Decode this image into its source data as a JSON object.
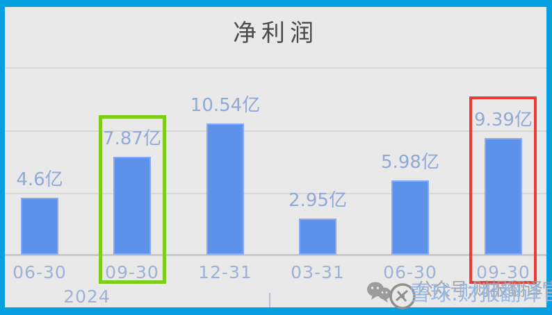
{
  "frame": {
    "border_color": "#069fe0",
    "background": "#e9e9e9"
  },
  "chart_data": {
    "type": "bar",
    "title": "净利润",
    "unit": "亿",
    "categories": [
      "06-30",
      "09-30",
      "12-31",
      "03-31",
      "06-30",
      "09-30"
    ],
    "values": [
      4.6,
      7.87,
      10.54,
      2.95,
      5.98,
      9.39
    ],
    "value_labels": [
      "4.6亿",
      "7.87亿",
      "10.54亿",
      "2.95亿",
      "5.98亿",
      "9.39亿"
    ],
    "year_label": "2024",
    "ylim": [
      0,
      15
    ],
    "gridline_values": [
      5,
      10,
      15
    ],
    "grid": true,
    "legend_position": "none",
    "bar_color": "#5c92ea",
    "bar_edge_color": "#86a9f0",
    "value_label_color": "#8fa9d9",
    "axis_label_color": "#9fb1d4",
    "title_color": "#4a4a4a",
    "gridline_color": "#d7d7d7",
    "baseline_color": "#c9c9c9",
    "highlights": [
      {
        "index": 1,
        "color": "#7ecd18",
        "thickness": 5
      },
      {
        "index": 5,
        "color": "#ec3b31",
        "thickness": 4
      }
    ]
  },
  "watermark": {
    "wechat_text": "公众号:财报翻译官",
    "xueqiu_text": "雪球:财报翻译官",
    "gray_color": "#9c9c9c",
    "blue_color": "#93b7e4"
  }
}
